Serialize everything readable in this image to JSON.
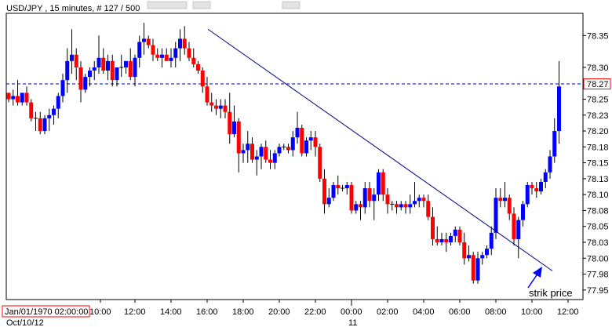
{
  "chart_data": {
    "type": "candlestick",
    "header": {
      "symbol": "USD/JPY",
      "timeframe": "15 minutes",
      "count": "# 127 / 500",
      "text": "USD/JPY , 15 minutes, # 127 / 500"
    },
    "ylim": [
      77.935,
      78.385
    ],
    "y_ticks": [
      "78.35",
      "78.30",
      "78.28",
      "78.25",
      "78.23",
      "78.20",
      "78.18",
      "78.15",
      "78.13",
      "78.10",
      "78.08",
      "78.05",
      "78.03",
      "78.00",
      "77.98",
      "77.95"
    ],
    "y_tick_values": [
      78.35,
      78.3,
      78.275,
      78.25,
      78.225,
      78.2,
      78.175,
      78.15,
      78.125,
      78.1,
      78.075,
      78.05,
      78.025,
      78.0,
      77.975,
      77.95
    ],
    "x_ticks": [
      "10:00",
      "12:00",
      "14:00",
      "16:00",
      "18:00",
      "20:00",
      "22:00",
      "00:00",
      "02:00",
      "04:00",
      "06:00",
      "08:00",
      "10:00",
      "12:00"
    ],
    "x_ticks_row2": [
      "Oct/10/12",
      "11"
    ],
    "cursor_time_label": "Jan/01/1970 02:00:00",
    "current_price": {
      "label": "78.27",
      "value": 78.274
    },
    "trendline": {
      "from": {
        "time": "16:00",
        "price": 78.36
      },
      "to": {
        "time": "11:00",
        "price": 77.99
      }
    },
    "annotation": {
      "text": "strik price",
      "points_to_price": 77.995
    },
    "colors": {
      "bull": "#0000ff",
      "bear": "#ff0000",
      "doji": "#000000",
      "trendline": "#000080",
      "price_line": "#0000a0",
      "price_box": "#ff0000",
      "axis": "#000000"
    },
    "candles": [
      [
        78.26,
        78.26,
        78.245,
        78.25
      ],
      [
        78.25,
        78.265,
        78.24,
        78.255
      ],
      [
        78.255,
        78.28,
        78.24,
        78.245
      ],
      [
        78.245,
        78.26,
        78.24,
        78.26
      ],
      [
        78.26,
        78.27,
        78.24,
        78.245
      ],
      [
        78.245,
        78.25,
        78.215,
        78.22
      ],
      [
        78.22,
        78.23,
        78.2,
        78.22
      ],
      [
        78.22,
        78.23,
        78.195,
        78.2
      ],
      [
        78.2,
        78.225,
        78.195,
        78.22
      ],
      [
        78.22,
        78.235,
        78.2,
        78.225
      ],
      [
        78.225,
        78.24,
        78.21,
        78.235
      ],
      [
        78.235,
        78.26,
        78.22,
        78.255
      ],
      [
        78.255,
        78.29,
        78.245,
        78.28
      ],
      [
        78.28,
        78.33,
        78.26,
        78.31
      ],
      [
        78.31,
        78.36,
        78.29,
        78.32
      ],
      [
        78.32,
        78.33,
        78.28,
        78.3
      ],
      [
        78.3,
        78.31,
        78.245,
        78.265
      ],
      [
        78.265,
        78.29,
        78.26,
        78.285
      ],
      [
        78.285,
        78.3,
        78.27,
        78.295
      ],
      [
        78.295,
        78.31,
        78.28,
        78.3
      ],
      [
        78.3,
        78.35,
        78.29,
        78.315
      ],
      [
        78.315,
        78.33,
        78.29,
        78.295
      ],
      [
        78.295,
        78.32,
        78.28,
        78.31
      ],
      [
        78.31,
        78.32,
        78.27,
        78.28
      ],
      [
        78.28,
        78.3,
        78.27,
        78.3
      ],
      [
        78.3,
        78.32,
        78.285,
        78.3
      ],
      [
        78.3,
        78.31,
        78.29,
        78.31
      ],
      [
        78.31,
        78.33,
        78.28,
        78.285
      ],
      [
        78.285,
        78.32,
        78.27,
        78.315
      ],
      [
        78.315,
        78.35,
        78.3,
        78.34
      ],
      [
        78.34,
        78.37,
        78.32,
        78.345
      ],
      [
        78.345,
        78.35,
        78.33,
        78.335
      ],
      [
        78.335,
        78.345,
        78.31,
        78.32
      ],
      [
        78.32,
        78.33,
        78.31,
        78.315
      ],
      [
        78.315,
        78.33,
        78.3,
        78.32
      ],
      [
        78.32,
        78.33,
        78.31,
        78.31
      ],
      [
        78.31,
        78.33,
        78.3,
        78.315
      ],
      [
        78.315,
        78.34,
        78.3,
        78.33
      ],
      [
        78.33,
        78.36,
        78.31,
        78.345
      ],
      [
        78.345,
        78.365,
        78.32,
        78.33
      ],
      [
        78.33,
        78.34,
        78.31,
        78.315
      ],
      [
        78.315,
        78.33,
        78.3,
        78.305
      ],
      [
        78.305,
        78.31,
        78.29,
        78.295
      ],
      [
        78.295,
        78.3,
        78.26,
        78.27
      ],
      [
        78.27,
        78.285,
        78.24,
        78.245
      ],
      [
        78.245,
        78.26,
        78.23,
        78.24
      ],
      [
        78.24,
        78.25,
        78.225,
        78.235
      ],
      [
        78.235,
        78.25,
        78.22,
        78.24
      ],
      [
        78.24,
        78.25,
        78.22,
        78.23
      ],
      [
        78.23,
        78.26,
        78.18,
        78.195
      ],
      [
        78.195,
        78.24,
        78.19,
        78.215
      ],
      [
        78.215,
        78.22,
        78.135,
        78.165
      ],
      [
        78.165,
        78.18,
        78.15,
        78.17
      ],
      [
        78.17,
        78.2,
        78.15,
        78.18
      ],
      [
        78.18,
        78.19,
        78.15,
        78.155
      ],
      [
        78.155,
        78.17,
        78.13,
        78.16
      ],
      [
        78.16,
        78.18,
        78.14,
        78.175
      ],
      [
        78.175,
        78.185,
        78.15,
        78.155
      ],
      [
        78.155,
        78.17,
        78.14,
        78.15
      ],
      [
        78.15,
        78.17,
        78.14,
        78.165
      ],
      [
        78.165,
        78.18,
        78.16,
        78.175
      ],
      [
        78.175,
        78.18,
        78.17,
        78.175
      ],
      [
        78.175,
        78.18,
        78.165,
        78.17
      ],
      [
        78.17,
        78.2,
        78.16,
        78.19
      ],
      [
        78.19,
        78.23,
        78.18,
        78.205
      ],
      [
        78.205,
        78.21,
        78.16,
        78.165
      ],
      [
        78.165,
        78.19,
        78.16,
        78.185
      ],
      [
        78.185,
        78.2,
        78.17,
        78.19
      ],
      [
        78.19,
        78.2,
        78.16,
        78.175
      ],
      [
        78.175,
        78.18,
        78.12,
        78.125
      ],
      [
        78.125,
        78.14,
        78.07,
        78.085
      ],
      [
        78.085,
        78.11,
        78.08,
        78.095
      ],
      [
        78.095,
        78.12,
        78.09,
        78.115
      ],
      [
        78.115,
        78.13,
        78.1,
        78.11
      ],
      [
        78.11,
        78.115,
        78.105,
        78.11
      ],
      [
        78.11,
        78.12,
        78.1,
        78.115
      ],
      [
        78.115,
        78.12,
        78.07,
        78.075
      ],
      [
        78.075,
        78.09,
        78.07,
        78.085
      ],
      [
        78.085,
        78.09,
        78.06,
        78.08
      ],
      [
        78.08,
        78.12,
        78.07,
        78.11
      ],
      [
        78.11,
        78.12,
        78.08,
        78.09
      ],
      [
        78.09,
        78.11,
        78.06,
        78.1
      ],
      [
        78.1,
        78.14,
        78.09,
        78.135
      ],
      [
        78.135,
        78.14,
        78.09,
        78.1
      ],
      [
        78.1,
        78.11,
        78.07,
        78.085
      ],
      [
        78.085,
        78.09,
        78.075,
        78.085
      ],
      [
        78.085,
        78.09,
        78.07,
        78.08
      ],
      [
        78.08,
        78.09,
        78.075,
        78.085
      ],
      [
        78.085,
        78.09,
        78.07,
        78.08
      ],
      [
        78.08,
        78.1,
        78.07,
        78.085
      ],
      [
        78.085,
        78.12,
        78.08,
        78.09
      ],
      [
        78.09,
        78.1,
        78.08,
        78.095
      ],
      [
        78.095,
        78.1,
        78.08,
        78.09
      ],
      [
        78.09,
        78.1,
        78.06,
        78.065
      ],
      [
        78.065,
        78.08,
        78.02,
        78.03
      ],
      [
        78.03,
        78.05,
        78.02,
        78.025
      ],
      [
        78.025,
        78.04,
        78.02,
        78.03
      ],
      [
        78.03,
        78.04,
        78.01,
        78.025
      ],
      [
        78.025,
        78.04,
        78.02,
        78.035
      ],
      [
        78.035,
        78.05,
        78.025,
        78.045
      ],
      [
        78.045,
        78.05,
        78.02,
        78.025
      ],
      [
        78.025,
        78.04,
        77.99,
        78.0
      ],
      [
        78.0,
        78.02,
        77.995,
        78.005
      ],
      [
        78.005,
        78.01,
        77.96,
        77.965
      ],
      [
        77.965,
        78.01,
        77.96,
        78.0
      ],
      [
        78.0,
        78.01,
        77.99,
        78.005
      ],
      [
        78.005,
        78.02,
        78.0,
        78.015
      ],
      [
        78.015,
        78.05,
        78.005,
        78.04
      ],
      [
        78.04,
        78.11,
        78.03,
        78.095
      ],
      [
        78.095,
        78.11,
        78.08,
        78.09
      ],
      [
        78.09,
        78.12,
        78.08,
        78.095
      ],
      [
        78.095,
        78.1,
        78.06,
        78.07
      ],
      [
        78.07,
        78.08,
        78.02,
        78.03
      ],
      [
        78.03,
        78.065,
        78.0,
        78.06
      ],
      [
        78.06,
        78.09,
        78.05,
        78.085
      ],
      [
        78.085,
        78.12,
        78.08,
        78.115
      ],
      [
        78.115,
        78.12,
        78.1,
        78.11
      ],
      [
        78.11,
        78.12,
        78.095,
        78.105
      ],
      [
        78.105,
        78.125,
        78.1,
        78.12
      ],
      [
        78.12,
        78.14,
        78.11,
        78.135
      ],
      [
        78.135,
        78.17,
        78.125,
        78.16
      ],
      [
        78.16,
        78.22,
        78.15,
        78.2
      ],
      [
        78.2,
        78.31,
        78.18,
        78.27
      ]
    ]
  }
}
